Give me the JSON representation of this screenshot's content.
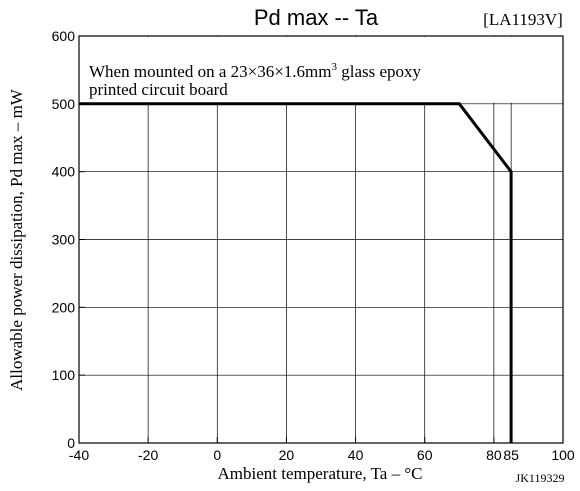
{
  "chart_data": {
    "type": "line",
    "title": "Pd max -- Ta",
    "part_number": "[LA1193V]",
    "xlabel": "Ambient temperature, Ta – °C",
    "ylabel": "Allowable power dissipation, Pd max – mW",
    "xlim": [
      -40,
      100
    ],
    "ylim": [
      0,
      600
    ],
    "x_ticks": [
      -40,
      -20,
      0,
      20,
      40,
      60,
      80,
      85,
      100
    ],
    "x_tick_labels": [
      "-40",
      "-20",
      "0",
      "20",
      "40",
      "60",
      "80",
      "85",
      "100"
    ],
    "y_ticks": [
      0,
      100,
      200,
      300,
      400,
      500,
      600
    ],
    "y_tick_labels": [
      "0",
      "100",
      "200",
      "300",
      "400",
      "500",
      "600"
    ],
    "grid": true,
    "annotation": {
      "line1_prefix": "When mounted on a 23×36×1.6mm",
      "line1_superscript": "3",
      "line1_suffix": " glass epoxy",
      "line2": "printed circuit board"
    },
    "series": [
      {
        "x": [
          -40,
          70,
          85,
          85
        ],
        "y": [
          500,
          500,
          400,
          0
        ]
      }
    ],
    "figure_code": "JK119329"
  }
}
